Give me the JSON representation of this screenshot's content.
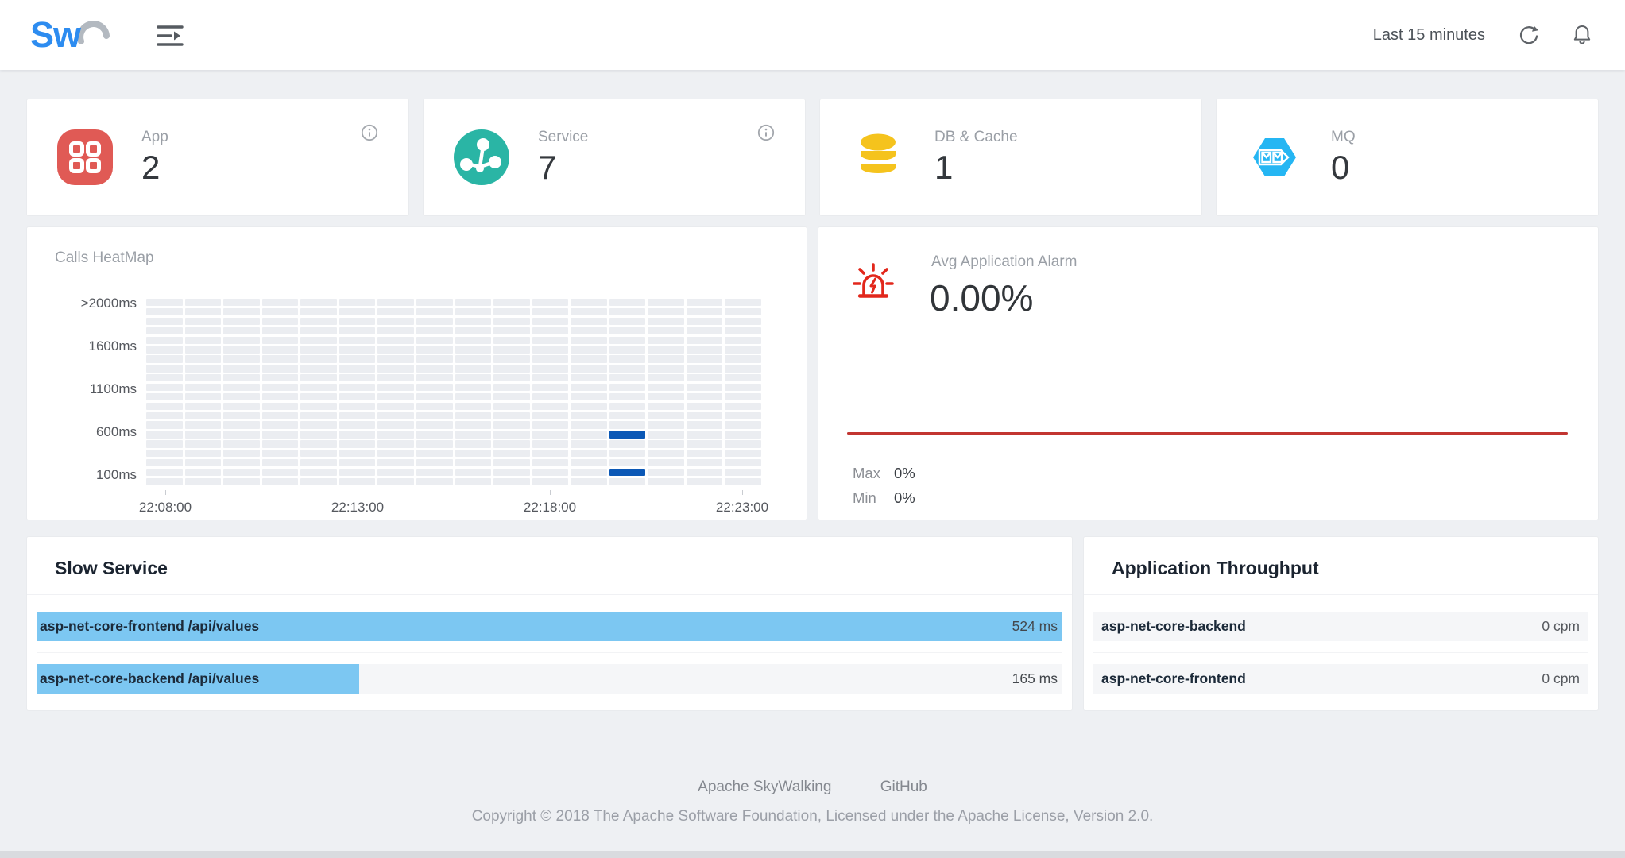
{
  "topbar": {
    "logo_text": "Sw",
    "time_range": "Last 15 minutes"
  },
  "stat_cards": [
    {
      "label": "App",
      "value": "2",
      "icon": "app-grid-icon",
      "color": "#e05a55",
      "has_info": true
    },
    {
      "label": "Service",
      "value": "7",
      "icon": "service-node-icon",
      "color": "#2ab5a5",
      "has_info": true
    },
    {
      "label": "DB & Cache",
      "value": "1",
      "icon": "database-icon",
      "color": "#f5c31d",
      "has_info": false
    },
    {
      "label": "MQ",
      "value": "0",
      "icon": "mq-hexagon-icon",
      "color": "#25b6f3",
      "has_info": false
    }
  ],
  "heatmap": {
    "title": "Calls HeatMap",
    "y_labels": [
      ">2000ms",
      "1600ms",
      "1100ms",
      "600ms",
      "100ms"
    ],
    "x_labels": [
      "22:08:00",
      "22:13:00",
      "22:18:00",
      "22:23:00"
    ],
    "rows": 20,
    "cols": 16,
    "active_cells": [
      {
        "row": 14,
        "col": 12
      },
      {
        "row": 18,
        "col": 12
      }
    ],
    "cell_color": "#ebedf1",
    "active_color": "#0b58b6"
  },
  "alarm": {
    "label": "Avg Application Alarm",
    "value": "0.00%",
    "max_label": "Max",
    "max_value": "0%",
    "min_label": "Min",
    "min_value": "0%",
    "line_color": "#c23531"
  },
  "slow_service": {
    "title": "Slow Service",
    "bar_color": "#7cc7f2",
    "rows": [
      {
        "name": "asp-net-core-frontend /api/values",
        "value": "524 ms",
        "percent": 100
      },
      {
        "name": "asp-net-core-backend /api/values",
        "value": "165 ms",
        "percent": 31.5
      }
    ]
  },
  "throughput": {
    "title": "Application Throughput",
    "bar_color": "#7cc7f2",
    "rows": [
      {
        "name": "asp-net-core-backend",
        "value": "0 cpm",
        "percent": 0
      },
      {
        "name": "asp-net-core-frontend",
        "value": "0 cpm",
        "percent": 0
      }
    ]
  },
  "footer": {
    "link_1": "Apache SkyWalking",
    "link_2": "GitHub",
    "copyright": "Copyright © 2018 The Apache Software Foundation, Licensed under the Apache License, Version 2.0."
  },
  "chart_data": [
    {
      "type": "heatmap",
      "title": "Calls HeatMap",
      "x_tick_labels": [
        "22:08:00",
        "22:13:00",
        "22:18:00",
        "22:23:00"
      ],
      "y_tick_labels": [
        ">2000ms",
        "1600ms",
        "1100ms",
        "600ms",
        "100ms"
      ],
      "grid": {
        "rows": 20,
        "cols": 16
      },
      "active_cells": [
        {
          "col": 12,
          "row": 14,
          "approx_time": "22:20:00",
          "approx_bucket": "600ms"
        },
        {
          "col": 12,
          "row": 18,
          "approx_time": "22:20:00",
          "approx_bucket": "100ms"
        }
      ],
      "legend_position": "none",
      "grid_on": true
    },
    {
      "type": "line",
      "title": "Avg Application Alarm",
      "current_value_pct": 0.0,
      "max_pct": 0,
      "min_pct": 0,
      "series": [
        {
          "name": "alarm",
          "shape": "flat line at 0%"
        }
      ],
      "line_color": "#c23531"
    },
    {
      "type": "bar",
      "title": "Slow Service",
      "categories": [
        "asp-net-core-frontend /api/values",
        "asp-net-core-backend /api/values"
      ],
      "values": [
        524,
        165
      ],
      "unit": "ms",
      "orientation": "horizontal",
      "xlim": [
        0,
        524
      ]
    },
    {
      "type": "bar",
      "title": "Application Throughput",
      "categories": [
        "asp-net-core-backend",
        "asp-net-core-frontend"
      ],
      "values": [
        0,
        0
      ],
      "unit": "cpm",
      "orientation": "horizontal"
    }
  ]
}
